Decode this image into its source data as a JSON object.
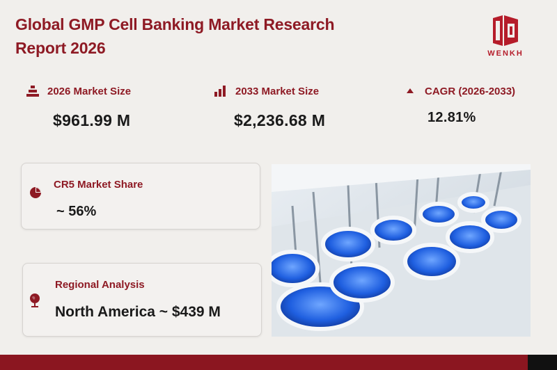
{
  "header": {
    "title_line1": "Global GMP Cell Banking Market Research",
    "title_line2": "Report 2026"
  },
  "logo": {
    "text": "WENKH",
    "icon": "wenkh-logo-icon",
    "color": "#b51c2a"
  },
  "metrics": [
    {
      "label": "2026 Market Size",
      "value": "$961.99 M",
      "icon": "pyramid-icon"
    },
    {
      "label": "2033 Market Size",
      "value": "$2,236.68 M",
      "icon": "bar-chart-icon"
    },
    {
      "label": "CAGR (2026-2033)",
      "value": "12.81%",
      "icon": "triangle-up-icon"
    }
  ],
  "cr5": {
    "label": "CR5 Market Share",
    "value": "~ 56%",
    "icon": "pie-chart-icon"
  },
  "regional": {
    "label": "Regional Analysis",
    "value": "North America ~ $439 M",
    "icon": "globe-icon"
  },
  "colors": {
    "accent": "#8e1a24",
    "background": "#f1efec",
    "bar": "#8b1620"
  }
}
